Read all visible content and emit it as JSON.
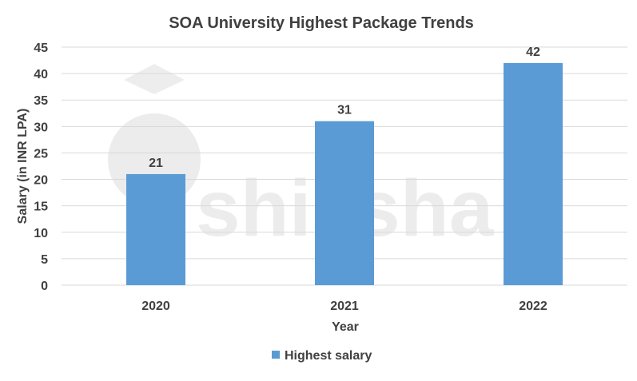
{
  "chart_data": {
    "type": "bar",
    "title": "SOA University Highest Package Trends",
    "xlabel": "Year",
    "ylabel": "Salary (in INR LPA)",
    "categories": [
      "2020",
      "2021",
      "2022"
    ],
    "series": [
      {
        "name": "Highest salary",
        "values": [
          21,
          31,
          42
        ],
        "color": "#5B9BD5"
      }
    ],
    "ylim": [
      0,
      45
    ],
    "yticks": [
      0,
      5,
      10,
      15,
      20,
      25,
      30,
      35,
      40,
      45
    ],
    "grid": true,
    "legend_position": "bottom",
    "data_labels": true,
    "watermark": "shiksha"
  }
}
